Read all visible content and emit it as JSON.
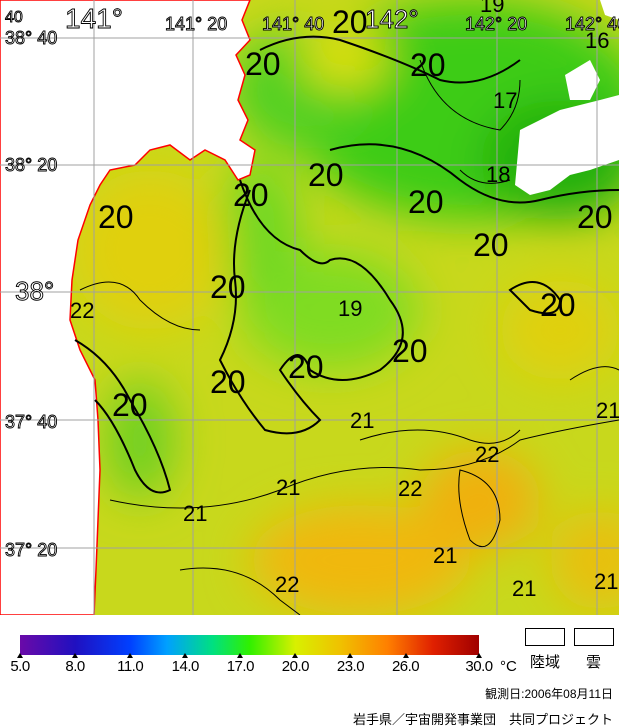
{
  "map": {
    "lon_labels": [
      "141°",
      "141° 20",
      "141° 40",
      "142°",
      "142° 20",
      "142° 40"
    ],
    "lat_labels": [
      "38° 40",
      "38° 20",
      "38°",
      "37° 40",
      "37° 20"
    ],
    "corner_label": "40",
    "contour_labels": [
      "20",
      "20",
      "20",
      "20",
      "20",
      "20",
      "20",
      "20",
      "20",
      "20",
      "20",
      "20",
      "20",
      "20",
      "20",
      "17",
      "18",
      "16",
      "19",
      "22",
      "21",
      "21",
      "21",
      "22",
      "22",
      "21",
      "21",
      "22",
      "21",
      "21",
      "19"
    ],
    "colors": {
      "land": "#ffffff",
      "cloud": "#ffffff",
      "coast": "#ff0000",
      "grid": "#a0a0a0"
    }
  },
  "legend": {
    "ticks": [
      "5.0",
      "8.0",
      "11.0",
      "14.0",
      "17.0",
      "20.0",
      "23.0",
      "26.0",
      "30.0"
    ],
    "tick_values": [
      5,
      8,
      11,
      14,
      17,
      20,
      23,
      26,
      30
    ],
    "range": [
      5,
      30
    ],
    "unit": "°C",
    "land_label": "陸域",
    "cloud_label": "雲",
    "observation_date": "観測日:2006年08月11日",
    "credit": "岩手県／宇宙開発事業団　共同プロジェクト"
  }
}
